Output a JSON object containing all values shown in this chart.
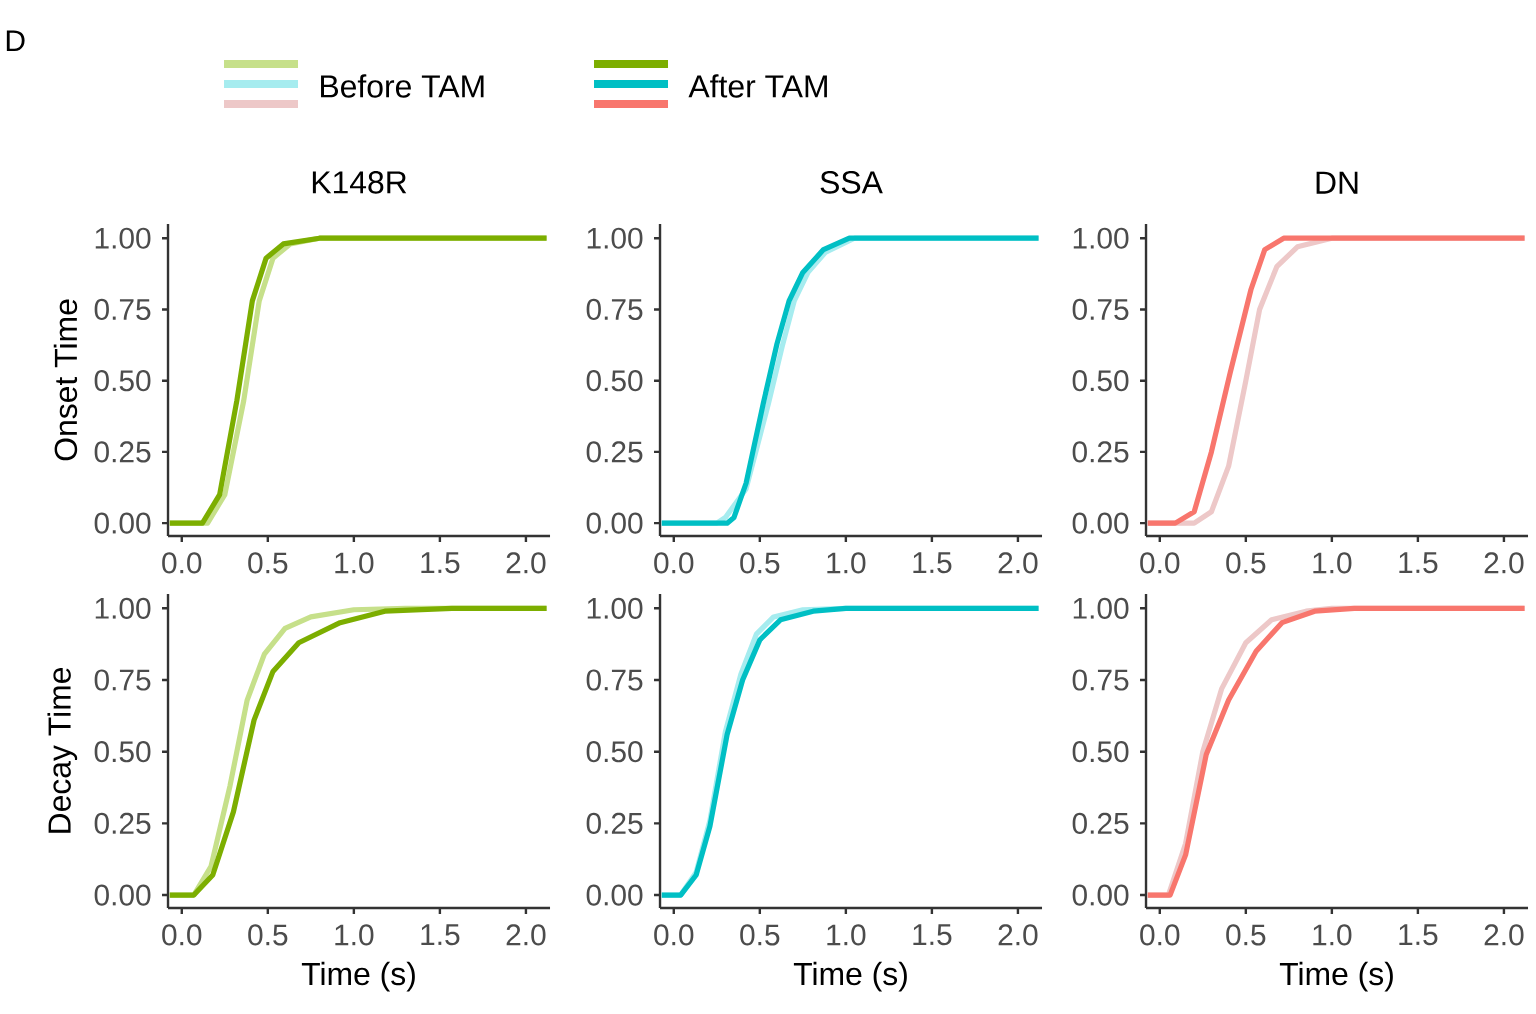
{
  "chart_data": [
    {
      "type": "line",
      "title": "K148R",
      "ylabel": "Onset Time",
      "annotations": [
        "D"
      ],
      "legend": "top",
      "xlim": [
        -0.08,
        2.14
      ],
      "ylim": [
        -0.045,
        1.05
      ],
      "xticks": [
        {
          "value": 0,
          "label": "0.0"
        },
        {
          "value": 0.5,
          "label": "0.5"
        },
        {
          "value": 1,
          "label": "1.0"
        },
        {
          "value": 1.5,
          "label": "1.5"
        },
        {
          "value": 2,
          "label": "2.0"
        }
      ],
      "yticks": [
        {
          "value": 0,
          "label": "0.00"
        },
        {
          "value": 0.25,
          "label": "0.25"
        },
        {
          "value": 0.5,
          "label": "0.50"
        },
        {
          "value": 0.75,
          "label": "0.75"
        },
        {
          "value": 1,
          "label": "1.00"
        }
      ],
      "series": [
        {
          "name": "Before TAM",
          "color": "#c6e08a",
          "x": [
            -0.07,
            0.15,
            0.25,
            0.36,
            0.45,
            0.53,
            0.63,
            0.8,
            2.12
          ],
          "values": [
            0,
            0,
            0.1,
            0.43,
            0.78,
            0.93,
            0.98,
            1,
            1
          ]
        },
        {
          "name": "After TAM",
          "color": "#7cae00",
          "x": [
            -0.07,
            0.12,
            0.22,
            0.32,
            0.41,
            0.49,
            0.59,
            0.8,
            2.12
          ],
          "values": [
            0,
            0,
            0.1,
            0.43,
            0.78,
            0.93,
            0.98,
            1,
            1
          ]
        }
      ]
    },
    {
      "type": "line",
      "title": "SSA",
      "xlim": [
        -0.08,
        2.14
      ],
      "ylim": [
        -0.045,
        1.05
      ],
      "xticks": [
        {
          "value": 0,
          "label": "0.0"
        },
        {
          "value": 0.5,
          "label": "0.5"
        },
        {
          "value": 1,
          "label": "1.0"
        },
        {
          "value": 1.5,
          "label": "1.5"
        },
        {
          "value": 2,
          "label": "2.0"
        }
      ],
      "yticks": [
        {
          "value": 0,
          "label": "0.00"
        },
        {
          "value": 0.25,
          "label": "0.25"
        },
        {
          "value": 0.5,
          "label": "0.50"
        },
        {
          "value": 0.75,
          "label": "0.75"
        },
        {
          "value": 1,
          "label": "1.00"
        }
      ],
      "series": [
        {
          "color": "#a6ecef",
          "x": [
            -0.07,
            0.25,
            0.3,
            0.42,
            0.55,
            0.63,
            0.7,
            0.78,
            0.88,
            1.05,
            2.12
          ],
          "values": [
            0,
            0,
            0.02,
            0.12,
            0.42,
            0.62,
            0.78,
            0.88,
            0.95,
            1,
            1
          ]
        },
        {
          "color": "#00bfc4",
          "x": [
            -0.07,
            0.31,
            0.35,
            0.42,
            0.52,
            0.6,
            0.67,
            0.75,
            0.87,
            1.02,
            2.12
          ],
          "values": [
            0,
            0,
            0.02,
            0.14,
            0.42,
            0.63,
            0.78,
            0.88,
            0.96,
            1,
            1
          ]
        }
      ]
    },
    {
      "type": "line",
      "title": "DN",
      "xlim": [
        -0.08,
        2.14
      ],
      "ylim": [
        -0.045,
        1.05
      ],
      "xticks": [
        {
          "value": 0,
          "label": "0.0"
        },
        {
          "value": 0.5,
          "label": "0.5"
        },
        {
          "value": 1,
          "label": "1.0"
        },
        {
          "value": 1.5,
          "label": "1.5"
        },
        {
          "value": 2,
          "label": "2.0"
        }
      ],
      "yticks": [
        {
          "value": 0,
          "label": "0.00"
        },
        {
          "value": 0.25,
          "label": "0.25"
        },
        {
          "value": 0.5,
          "label": "0.50"
        },
        {
          "value": 0.75,
          "label": "0.75"
        },
        {
          "value": 1,
          "label": "1.00"
        }
      ],
      "series": [
        {
          "color": "#edc8c8",
          "x": [
            -0.07,
            0.2,
            0.3,
            0.4,
            0.5,
            0.58,
            0.68,
            0.8,
            1.0,
            2.12
          ],
          "values": [
            0,
            0,
            0.04,
            0.2,
            0.5,
            0.75,
            0.9,
            0.97,
            1,
            1
          ]
        },
        {
          "color": "#f8766d",
          "x": [
            -0.07,
            0.09,
            0.2,
            0.3,
            0.41,
            0.53,
            0.61,
            0.72,
            2.12
          ],
          "values": [
            0,
            0,
            0.04,
            0.25,
            0.53,
            0.82,
            0.96,
            1,
            1
          ]
        }
      ]
    },
    {
      "type": "line",
      "xlabel": "Time (s)",
      "ylabel": "Decay Time",
      "xlim": [
        -0.08,
        2.14
      ],
      "ylim": [
        -0.045,
        1.05
      ],
      "xticks": [
        {
          "value": 0,
          "label": "0.0"
        },
        {
          "value": 0.5,
          "label": "0.5"
        },
        {
          "value": 1,
          "label": "1.0"
        },
        {
          "value": 1.5,
          "label": "1.5"
        },
        {
          "value": 2,
          "label": "2.0"
        }
      ],
      "yticks": [
        {
          "value": 0,
          "label": "0.00"
        },
        {
          "value": 0.25,
          "label": "0.25"
        },
        {
          "value": 0.5,
          "label": "0.50"
        },
        {
          "value": 0.75,
          "label": "0.75"
        },
        {
          "value": 1,
          "label": "1.00"
        }
      ],
      "series": [
        {
          "color": "#c6e08a",
          "x": [
            -0.07,
            0.07,
            0.17,
            0.28,
            0.38,
            0.48,
            0.6,
            0.75,
            1.0,
            1.3,
            2.12
          ],
          "values": [
            0,
            0,
            0.1,
            0.38,
            0.68,
            0.84,
            0.93,
            0.97,
            0.995,
            1,
            1
          ]
        },
        {
          "color": "#7cae00",
          "x": [
            -0.07,
            0.07,
            0.18,
            0.3,
            0.42,
            0.53,
            0.68,
            0.92,
            1.18,
            1.57,
            2.12
          ],
          "values": [
            0,
            0,
            0.07,
            0.29,
            0.61,
            0.78,
            0.88,
            0.95,
            0.99,
            1,
            1
          ]
        }
      ]
    },
    {
      "type": "line",
      "xlabel": "Time (s)",
      "xlim": [
        -0.08,
        2.14
      ],
      "ylim": [
        -0.045,
        1.05
      ],
      "xticks": [
        {
          "value": 0,
          "label": "0.0"
        },
        {
          "value": 0.5,
          "label": "0.5"
        },
        {
          "value": 1,
          "label": "1.0"
        },
        {
          "value": 1.5,
          "label": "1.5"
        },
        {
          "value": 2,
          "label": "2.0"
        }
      ],
      "yticks": [
        {
          "value": 0,
          "label": "0.00"
        },
        {
          "value": 0.25,
          "label": "0.25"
        },
        {
          "value": 0.5,
          "label": "0.50"
        },
        {
          "value": 0.75,
          "label": "0.75"
        },
        {
          "value": 1,
          "label": "1.00"
        }
      ],
      "series": [
        {
          "color": "#a6ecef",
          "x": [
            -0.07,
            0.04,
            0.13,
            0.21,
            0.3,
            0.39,
            0.48,
            0.58,
            0.75,
            1.0,
            2.12
          ],
          "values": [
            0,
            0,
            0.08,
            0.26,
            0.57,
            0.77,
            0.91,
            0.97,
            0.995,
            1,
            1
          ]
        },
        {
          "color": "#00bfc4",
          "x": [
            -0.07,
            0.04,
            0.13,
            0.21,
            0.31,
            0.4,
            0.5,
            0.62,
            0.81,
            1.0,
            2.12
          ],
          "values": [
            0,
            0,
            0.07,
            0.24,
            0.56,
            0.75,
            0.89,
            0.96,
            0.99,
            1,
            1
          ]
        }
      ]
    },
    {
      "type": "line",
      "xlabel": "Time (s)",
      "xlim": [
        -0.08,
        2.14
      ],
      "ylim": [
        -0.045,
        1.05
      ],
      "xticks": [
        {
          "value": 0,
          "label": "0.0"
        },
        {
          "value": 0.5,
          "label": "0.5"
        },
        {
          "value": 1,
          "label": "1.0"
        },
        {
          "value": 1.5,
          "label": "1.5"
        },
        {
          "value": 2,
          "label": "2.0"
        }
      ],
      "yticks": [
        {
          "value": 0,
          "label": "0.00"
        },
        {
          "value": 0.25,
          "label": "0.25"
        },
        {
          "value": 0.5,
          "label": "0.50"
        },
        {
          "value": 0.75,
          "label": "0.75"
        },
        {
          "value": 1,
          "label": "1.00"
        }
      ],
      "series": [
        {
          "color": "#edc8c8",
          "x": [
            -0.07,
            0.05,
            0.15,
            0.25,
            0.36,
            0.5,
            0.65,
            0.85,
            1.0,
            2.12
          ],
          "values": [
            0,
            0,
            0.18,
            0.5,
            0.72,
            0.88,
            0.96,
            0.99,
            1,
            1
          ]
        },
        {
          "color": "#f8766d",
          "x": [
            -0.07,
            0.06,
            0.15,
            0.27,
            0.4,
            0.56,
            0.71,
            0.9,
            1.13,
            2.12
          ],
          "values": [
            0,
            0,
            0.14,
            0.49,
            0.68,
            0.85,
            0.95,
            0.99,
            1,
            1
          ]
        }
      ]
    }
  ]
}
